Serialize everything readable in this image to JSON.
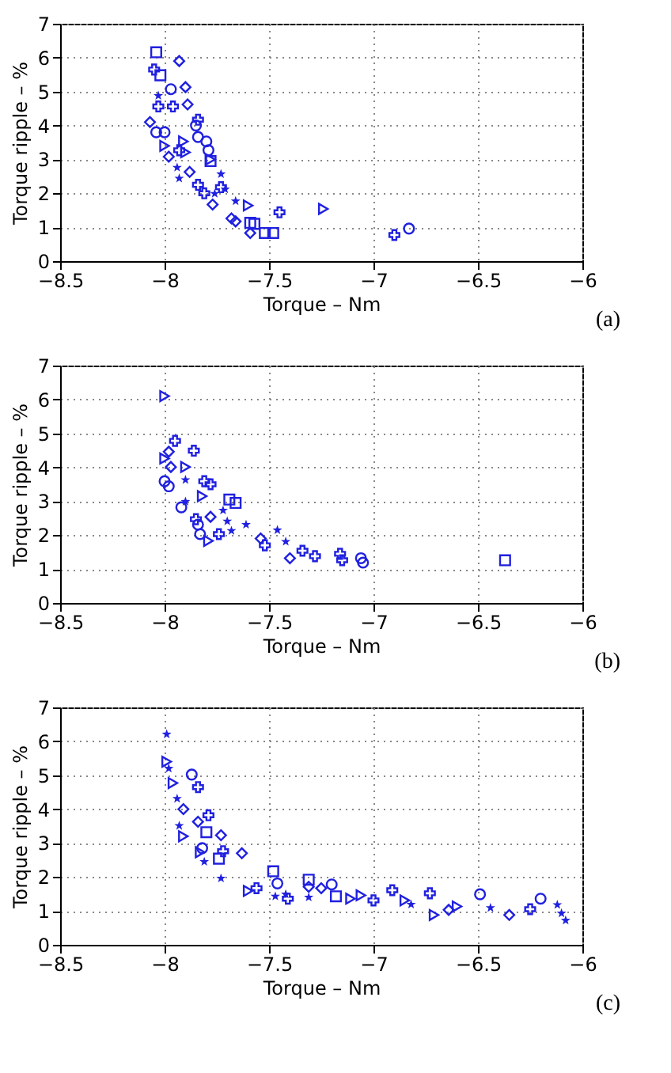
{
  "chart_data": [
    {
      "type": "scatter",
      "xlabel": "Torque – Nm",
      "ylabel": "Torque ripple – %",
      "annotations": [
        "(a)"
      ],
      "xlim": [
        -8.5,
        -6
      ],
      "xticks": [
        -8.5,
        -8,
        -7.5,
        -7,
        -6.5,
        -6
      ],
      "ylim": [
        0,
        7
      ],
      "yticks": [
        0,
        1,
        2,
        3,
        4,
        5,
        6,
        7
      ],
      "grid": true,
      "series": [
        {
          "color": "#2020e0",
          "marker": "square",
          "x": [
            -8.04,
            -8.02,
            -7.59,
            -7.57,
            -7.52,
            -7.48,
            -7.78
          ],
          "values": [
            6.16,
            5.48,
            1.13,
            1.1,
            0.83,
            0.83,
            2.95
          ]
        },
        {
          "color": "#2020e0",
          "marker": "diamond",
          "x": [
            -7.93,
            -7.9,
            -7.89,
            -7.68,
            -7.66,
            -7.59,
            -7.77,
            -8.07,
            -7.98,
            -7.88
          ],
          "values": [
            5.9,
            5.13,
            4.62,
            1.26,
            1.17,
            0.83,
            1.67,
            4.1,
            3.08,
            2.63
          ]
        },
        {
          "color": "#2020e0",
          "marker": "cross",
          "x": [
            -8.05,
            -7.45,
            -7.96,
            -7.84,
            -6.9,
            -8.03,
            -7.93,
            -7.84,
            -7.81,
            -7.73
          ],
          "values": [
            5.65,
            1.44,
            4.56,
            4.17,
            0.77,
            4.56,
            3.27,
            2.25,
            2.0,
            2.18
          ]
        },
        {
          "color": "#2020e0",
          "marker": "circle",
          "x": [
            -6.83,
            -7.79,
            -7.84,
            -7.97,
            -8.0,
            -8.04,
            -7.85,
            -7.8
          ],
          "values": [
            0.96,
            3.27,
            3.66,
            5.07,
            3.8,
            3.8,
            4.0,
            3.53
          ]
        },
        {
          "color": "#2020e0",
          "marker": "triangle",
          "x": [
            -7.24,
            -7.6,
            -7.91,
            -7.9,
            -8.0,
            -7.78
          ],
          "values": [
            1.54,
            1.64,
            3.53,
            3.21,
            3.4,
            3.0
          ]
        },
        {
          "color": "#2020e0",
          "marker": "star",
          "x": [
            -7.66,
            -7.93,
            -7.94,
            -8.03,
            -7.76,
            -7.73,
            -7.71
          ],
          "values": [
            1.77,
            2.44,
            2.76,
            4.88,
            1.99,
            2.57,
            2.12
          ]
        }
      ]
    },
    {
      "type": "scatter",
      "xlabel": "Torque – Nm",
      "ylabel": "Torque ripple – %",
      "annotations": [
        "(b)"
      ],
      "xlim": [
        -8.5,
        -6
      ],
      "xticks": [
        -8.5,
        -8,
        -7.5,
        -7,
        -6.5,
        -6
      ],
      "ylim": [
        0,
        7
      ],
      "yticks": [
        0,
        1,
        2,
        3,
        4,
        5,
        6,
        7
      ],
      "grid": true,
      "series": [
        {
          "color": "#2020e0",
          "marker": "triangle",
          "x": [
            -8.0,
            -7.9,
            -7.82,
            -7.79,
            -8.0
          ],
          "values": [
            6.1,
            4.01,
            3.15,
            1.83,
            4.26
          ]
        },
        {
          "color": "#2020e0",
          "marker": "diamond",
          "x": [
            -7.98,
            -7.97,
            -7.4,
            -7.54,
            -7.78
          ],
          "values": [
            4.46,
            4.01,
            1.32,
            1.9,
            2.54
          ]
        },
        {
          "color": "#2020e0",
          "marker": "circle",
          "x": [
            -8.0,
            -7.98,
            -7.92,
            -7.84,
            -7.83,
            -7.05,
            -7.06
          ],
          "values": [
            3.59,
            3.44,
            2.82,
            2.31,
            2.03,
            1.19,
            1.32
          ]
        },
        {
          "color": "#2020e0",
          "marker": "square",
          "x": [
            -6.37,
            -7.69,
            -7.66
          ],
          "values": [
            1.26,
            3.05,
            2.95
          ]
        },
        {
          "color": "#2020e0",
          "marker": "cross",
          "x": [
            -7.95,
            -7.86,
            -7.81,
            -7.78,
            -7.34,
            -7.28,
            -7.52,
            -7.15,
            -7.16,
            -7.85,
            -7.74
          ],
          "values": [
            4.78,
            4.49,
            3.59,
            3.5,
            1.54,
            1.38,
            1.7,
            1.26,
            1.45,
            2.47,
            2.03
          ]
        },
        {
          "color": "#2020e0",
          "marker": "star",
          "x": [
            -7.9,
            -7.9,
            -7.61,
            -7.46,
            -7.42,
            -7.72,
            -7.7,
            -7.68
          ],
          "values": [
            2.99,
            3.63,
            2.31,
            2.15,
            1.81,
            2.73,
            2.41,
            2.13
          ]
        }
      ]
    },
    {
      "type": "scatter",
      "xlabel": "Torque – Nm",
      "ylabel": "Torque ripple – %",
      "annotations": [
        "(c)"
      ],
      "xlim": [
        -8.5,
        -6
      ],
      "xticks": [
        -8.5,
        -8,
        -7.5,
        -7,
        -6.5,
        -6
      ],
      "ylim": [
        0,
        7
      ],
      "yticks": [
        0,
        1,
        2,
        3,
        4,
        5,
        6,
        7
      ],
      "grid": true,
      "series": [
        {
          "color": "#2020e0",
          "marker": "star",
          "x": [
            -7.99,
            -7.73,
            -7.81,
            -7.42,
            -6.44,
            -7.93,
            -7.47,
            -7.31,
            -6.82,
            -6.12,
            -6.1,
            -6.08,
            -7.98,
            -7.94
          ],
          "values": [
            6.21,
            1.96,
            2.45,
            1.49,
            1.09,
            3.51,
            1.43,
            1.4,
            1.19,
            1.18,
            0.93,
            0.72,
            5.2,
            4.31
          ]
        },
        {
          "color": "#2020e0",
          "marker": "triangle",
          "x": [
            -7.99,
            -7.96,
            -7.91,
            -7.83,
            -7.6,
            -7.06,
            -7.11,
            -6.71,
            -6.6,
            -6.85
          ],
          "values": [
            5.4,
            4.77,
            3.2,
            2.73,
            1.59,
            1.46,
            1.36,
            0.88,
            1.13,
            1.31
          ]
        },
        {
          "color": "#2020e0",
          "marker": "circle",
          "x": [
            -7.87,
            -7.46,
            -7.2,
            -6.49,
            -6.2,
            -7.82
          ],
          "values": [
            5.02,
            1.81,
            1.78,
            1.49,
            1.36,
            2.85
          ]
        },
        {
          "color": "#2020e0",
          "marker": "square",
          "x": [
            -7.48,
            -7.31,
            -7.18,
            -7.74,
            -7.8
          ],
          "values": [
            2.17,
            1.92,
            1.43,
            2.54,
            3.32
          ]
        },
        {
          "color": "#2020e0",
          "marker": "diamond",
          "x": [
            -7.73,
            -7.25,
            -7.31,
            -6.64,
            -6.35,
            -7.91,
            -7.84,
            -7.63
          ],
          "values": [
            3.23,
            1.67,
            1.71,
            1.03,
            0.88,
            4.0,
            3.63,
            2.7
          ]
        },
        {
          "color": "#2020e0",
          "marker": "cross",
          "x": [
            -7.0,
            -7.41,
            -6.73,
            -6.91,
            -7.56,
            -6.25,
            -7.84,
            -7.79,
            -7.72
          ],
          "values": [
            1.31,
            1.36,
            1.52,
            1.61,
            1.67,
            1.05,
            4.65,
            3.82,
            2.76
          ]
        }
      ]
    }
  ]
}
